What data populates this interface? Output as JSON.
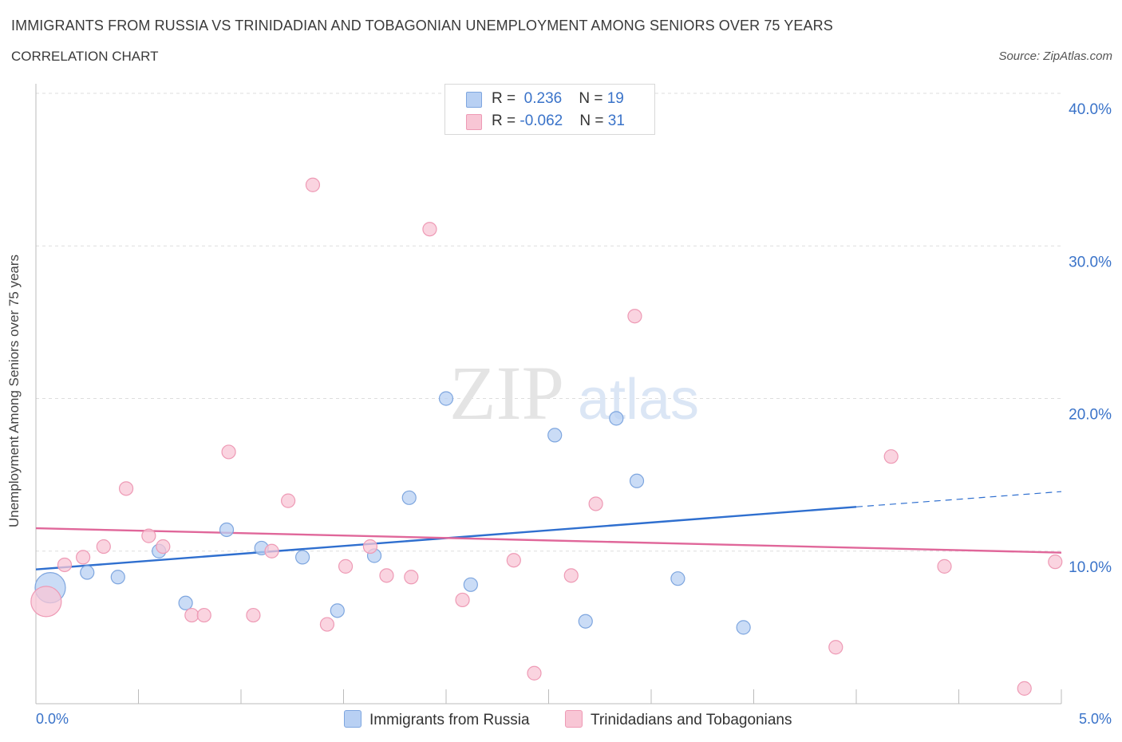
{
  "title": "IMMIGRANTS FROM RUSSIA VS TRINIDADIAN AND TOBAGONIAN UNEMPLOYMENT AMONG SENIORS OVER 75 YEARS",
  "subtitle": "CORRELATION CHART",
  "source": "Source: ZipAtlas.com",
  "watermark": {
    "zip": "ZIP",
    "atlas": "atlas"
  },
  "legend_top": {
    "row1": {
      "r_label": "R = ",
      "r_value": " 0.236",
      "n_label": "N = ",
      "n_value": "19"
    },
    "row2": {
      "r_label": "R = ",
      "r_value": "-0.062",
      "n_label": "N = ",
      "n_value": "31"
    }
  },
  "colors": {
    "blue_fill": "#b8d0f3",
    "blue_stroke": "#7ea6df",
    "blue_line": "#2f6fcf",
    "pink_fill": "#f8c6d5",
    "pink_stroke": "#ee9ab5",
    "pink_line": "#e0679a",
    "axis_label": "#3a73c9",
    "grid": "#dddddd"
  },
  "chart_data": {
    "type": "scatter",
    "title": "IMMIGRANTS FROM RUSSIA VS TRINIDADIAN AND TOBAGONIAN UNEMPLOYMENT AMONG SENIORS OVER 75 YEARS",
    "xlabel": "",
    "ylabel": "Unemployment Among Seniors over 75 years",
    "xlim": [
      0,
      5
    ],
    "ylim": [
      0,
      40
    ],
    "x_tick_labels": {
      "left": "0.0%",
      "right": "5.0%"
    },
    "y_ticks": [
      {
        "value": 10,
        "label": "10.0%"
      },
      {
        "value": 20,
        "label": "20.0%"
      },
      {
        "value": 30,
        "label": "30.0%"
      },
      {
        "value": 40,
        "label": "40.0%"
      }
    ],
    "series": [
      {
        "name": "Immigrants from Russia",
        "color": "blue",
        "points": [
          {
            "x": 0.07,
            "y": 7.6,
            "size": "large"
          },
          {
            "x": 0.25,
            "y": 8.6
          },
          {
            "x": 0.4,
            "y": 8.3
          },
          {
            "x": 0.6,
            "y": 10.0
          },
          {
            "x": 0.73,
            "y": 6.6
          },
          {
            "x": 0.93,
            "y": 11.4
          },
          {
            "x": 1.1,
            "y": 10.2
          },
          {
            "x": 1.3,
            "y": 9.6
          },
          {
            "x": 1.47,
            "y": 6.1
          },
          {
            "x": 1.65,
            "y": 9.7
          },
          {
            "x": 1.82,
            "y": 13.5
          },
          {
            "x": 2.0,
            "y": 20.0
          },
          {
            "x": 2.12,
            "y": 7.8
          },
          {
            "x": 2.53,
            "y": 17.6
          },
          {
            "x": 2.68,
            "y": 5.4
          },
          {
            "x": 2.83,
            "y": 18.7
          },
          {
            "x": 2.93,
            "y": 14.6
          },
          {
            "x": 3.13,
            "y": 8.2
          },
          {
            "x": 3.45,
            "y": 5.0
          }
        ],
        "trend": {
          "x0": 0,
          "y0": 8.8,
          "x1": 4.0,
          "y1": 12.9,
          "dashed_to_x": 5.0,
          "dashed_to_y": 13.9
        }
      },
      {
        "name": "Trinidadians and Tobagonians",
        "color": "pink",
        "points": [
          {
            "x": 0.05,
            "y": 6.7,
            "size": "large"
          },
          {
            "x": 0.14,
            "y": 9.1
          },
          {
            "x": 0.23,
            "y": 9.6
          },
          {
            "x": 0.33,
            "y": 10.3
          },
          {
            "x": 0.44,
            "y": 14.1
          },
          {
            "x": 0.55,
            "y": 11.0
          },
          {
            "x": 0.62,
            "y": 10.3
          },
          {
            "x": 0.76,
            "y": 5.8
          },
          {
            "x": 0.82,
            "y": 5.8
          },
          {
            "x": 0.94,
            "y": 16.5
          },
          {
            "x": 1.06,
            "y": 5.8
          },
          {
            "x": 1.15,
            "y": 10.0
          },
          {
            "x": 1.23,
            "y": 13.3
          },
          {
            "x": 1.35,
            "y": 34.0
          },
          {
            "x": 1.42,
            "y": 5.2
          },
          {
            "x": 1.51,
            "y": 9.0
          },
          {
            "x": 1.63,
            "y": 10.3
          },
          {
            "x": 1.71,
            "y": 8.4
          },
          {
            "x": 1.83,
            "y": 8.3
          },
          {
            "x": 1.92,
            "y": 31.1
          },
          {
            "x": 2.08,
            "y": 6.8
          },
          {
            "x": 2.33,
            "y": 9.4
          },
          {
            "x": 2.43,
            "y": 2.0
          },
          {
            "x": 2.61,
            "y": 8.4
          },
          {
            "x": 2.73,
            "y": 13.1
          },
          {
            "x": 2.92,
            "y": 25.4
          },
          {
            "x": 3.9,
            "y": 3.7
          },
          {
            "x": 4.17,
            "y": 16.2
          },
          {
            "x": 4.43,
            "y": 9.0
          },
          {
            "x": 4.82,
            "y": 1.0
          },
          {
            "x": 4.97,
            "y": 9.3
          }
        ],
        "trend": {
          "x0": 0,
          "y0": 11.5,
          "x1": 5.0,
          "y1": 9.9
        }
      }
    ],
    "legend": [
      {
        "label": "Immigrants from Russia"
      },
      {
        "label": "Trinidadians and Tobagonians"
      }
    ]
  }
}
